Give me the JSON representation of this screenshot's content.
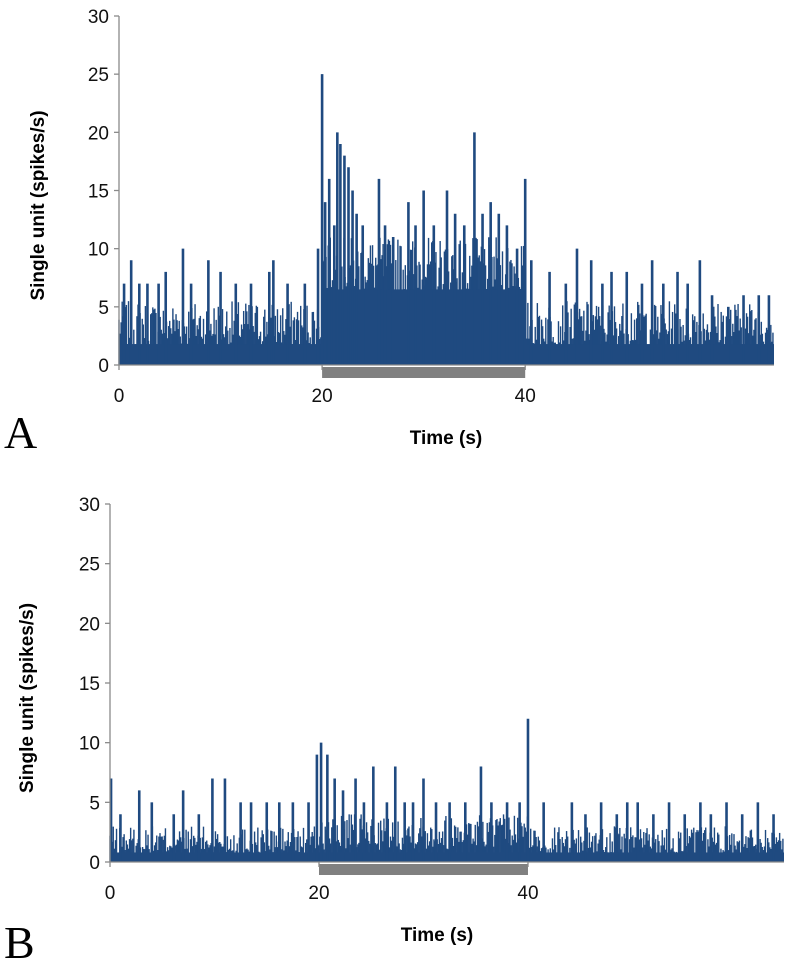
{
  "chart_data": [
    {
      "type": "bar",
      "panel_label": "A",
      "xlabel": "Time (s)",
      "ylabel": "Single unit (spikes/s)",
      "xlim": [
        0,
        64.5
      ],
      "ylim": [
        0,
        30
      ],
      "xticks": [
        "0",
        "20",
        "40"
      ],
      "yticks": [
        "0",
        "5",
        "10",
        "15",
        "20",
        "25",
        "30"
      ],
      "grid": false,
      "legend": "none",
      "series_color": "#1f4a80",
      "stimulus_color": "#808080",
      "stimulus_period": [
        20,
        40
      ],
      "spikes": [
        {
          "t": 0.5,
          "v": 7
        },
        {
          "t": 1.2,
          "v": 9
        },
        {
          "t": 2.0,
          "v": 7
        },
        {
          "t": 2.8,
          "v": 7
        },
        {
          "t": 3.9,
          "v": 7
        },
        {
          "t": 4.6,
          "v": 8
        },
        {
          "t": 6.3,
          "v": 10
        },
        {
          "t": 7.1,
          "v": 7
        },
        {
          "t": 8.8,
          "v": 9
        },
        {
          "t": 10.0,
          "v": 8
        },
        {
          "t": 11.5,
          "v": 7
        },
        {
          "t": 13.0,
          "v": 7
        },
        {
          "t": 14.8,
          "v": 8
        },
        {
          "t": 15.2,
          "v": 9
        },
        {
          "t": 16.6,
          "v": 7
        },
        {
          "t": 18.3,
          "v": 7
        },
        {
          "t": 19.6,
          "v": 10
        },
        {
          "t": 20.0,
          "v": 25
        },
        {
          "t": 20.3,
          "v": 14
        },
        {
          "t": 20.7,
          "v": 16
        },
        {
          "t": 21.2,
          "v": 12
        },
        {
          "t": 21.5,
          "v": 20
        },
        {
          "t": 21.8,
          "v": 19
        },
        {
          "t": 22.2,
          "v": 18
        },
        {
          "t": 22.6,
          "v": 17
        },
        {
          "t": 23.0,
          "v": 15
        },
        {
          "t": 23.4,
          "v": 13
        },
        {
          "t": 24.0,
          "v": 12
        },
        {
          "t": 25.6,
          "v": 16
        },
        {
          "t": 26.2,
          "v": 12
        },
        {
          "t": 27.0,
          "v": 11
        },
        {
          "t": 28.5,
          "v": 14
        },
        {
          "t": 29.2,
          "v": 12
        },
        {
          "t": 30.0,
          "v": 15
        },
        {
          "t": 31.0,
          "v": 12
        },
        {
          "t": 32.3,
          "v": 15
        },
        {
          "t": 33.1,
          "v": 13
        },
        {
          "t": 34.0,
          "v": 12
        },
        {
          "t": 35.0,
          "v": 20
        },
        {
          "t": 35.8,
          "v": 13
        },
        {
          "t": 36.6,
          "v": 14
        },
        {
          "t": 37.4,
          "v": 13
        },
        {
          "t": 38.2,
          "v": 12
        },
        {
          "t": 39.2,
          "v": 10
        },
        {
          "t": 40.0,
          "v": 16
        },
        {
          "t": 40.6,
          "v": 9
        },
        {
          "t": 42.4,
          "v": 8
        },
        {
          "t": 44.0,
          "v": 7
        },
        {
          "t": 45.1,
          "v": 10
        },
        {
          "t": 46.5,
          "v": 9
        },
        {
          "t": 47.6,
          "v": 7
        },
        {
          "t": 48.5,
          "v": 8
        },
        {
          "t": 50.0,
          "v": 8
        },
        {
          "t": 51.5,
          "v": 7
        },
        {
          "t": 52.5,
          "v": 9
        },
        {
          "t": 53.6,
          "v": 7
        },
        {
          "t": 55.0,
          "v": 8
        },
        {
          "t": 56.0,
          "v": 7
        },
        {
          "t": 57.2,
          "v": 9
        },
        {
          "t": 58.4,
          "v": 6
        },
        {
          "t": 60.0,
          "v": 5
        },
        {
          "t": 61.5,
          "v": 6
        },
        {
          "t": 63.0,
          "v": 6
        },
        {
          "t": 64.0,
          "v": 6
        }
      ]
    },
    {
      "type": "bar",
      "panel_label": "B",
      "xlabel": "Time (s)",
      "ylabel": "Single unit (spikes/s)",
      "xlim": [
        0,
        64.5
      ],
      "ylim": [
        0,
        30
      ],
      "xticks": [
        "0",
        "20",
        "40"
      ],
      "yticks": [
        "0",
        "5",
        "10",
        "15",
        "20",
        "25",
        "30"
      ],
      "grid": false,
      "legend": "none",
      "series_color": "#1f4a80",
      "stimulus_color": "#808080",
      "stimulus_period": [
        20,
        40
      ],
      "spikes": [
        {
          "t": 0.1,
          "v": 7
        },
        {
          "t": 1.0,
          "v": 4
        },
        {
          "t": 2.8,
          "v": 6
        },
        {
          "t": 4.0,
          "v": 5
        },
        {
          "t": 6.1,
          "v": 4
        },
        {
          "t": 7.0,
          "v": 6
        },
        {
          "t": 8.5,
          "v": 4
        },
        {
          "t": 9.8,
          "v": 7
        },
        {
          "t": 11.0,
          "v": 7
        },
        {
          "t": 12.5,
          "v": 5
        },
        {
          "t": 13.5,
          "v": 5
        },
        {
          "t": 15.0,
          "v": 5
        },
        {
          "t": 16.2,
          "v": 5
        },
        {
          "t": 17.5,
          "v": 5
        },
        {
          "t": 19.0,
          "v": 5
        },
        {
          "t": 19.8,
          "v": 9
        },
        {
          "t": 20.2,
          "v": 10
        },
        {
          "t": 20.8,
          "v": 9
        },
        {
          "t": 21.5,
          "v": 7
        },
        {
          "t": 22.3,
          "v": 6
        },
        {
          "t": 23.5,
          "v": 7
        },
        {
          "t": 24.3,
          "v": 5
        },
        {
          "t": 25.2,
          "v": 8
        },
        {
          "t": 26.5,
          "v": 5
        },
        {
          "t": 27.3,
          "v": 8
        },
        {
          "t": 28.2,
          "v": 5
        },
        {
          "t": 29.0,
          "v": 5
        },
        {
          "t": 30.0,
          "v": 7
        },
        {
          "t": 31.2,
          "v": 5
        },
        {
          "t": 32.5,
          "v": 5
        },
        {
          "t": 34.0,
          "v": 5
        },
        {
          "t": 35.5,
          "v": 8
        },
        {
          "t": 36.5,
          "v": 5
        },
        {
          "t": 38.0,
          "v": 5
        },
        {
          "t": 39.2,
          "v": 5
        },
        {
          "t": 40.0,
          "v": 12
        },
        {
          "t": 41.5,
          "v": 5
        },
        {
          "t": 44.2,
          "v": 5
        },
        {
          "t": 45.5,
          "v": 4
        },
        {
          "t": 47.0,
          "v": 5
        },
        {
          "t": 48.5,
          "v": 4
        },
        {
          "t": 49.5,
          "v": 5
        },
        {
          "t": 50.5,
          "v": 5
        },
        {
          "t": 52.0,
          "v": 4
        },
        {
          "t": 53.5,
          "v": 5
        },
        {
          "t": 55.0,
          "v": 4
        },
        {
          "t": 56.5,
          "v": 5
        },
        {
          "t": 57.5,
          "v": 4
        },
        {
          "t": 59.0,
          "v": 5
        },
        {
          "t": 60.5,
          "v": 4
        },
        {
          "t": 62.0,
          "v": 5
        },
        {
          "t": 63.5,
          "v": 4
        }
      ]
    }
  ]
}
